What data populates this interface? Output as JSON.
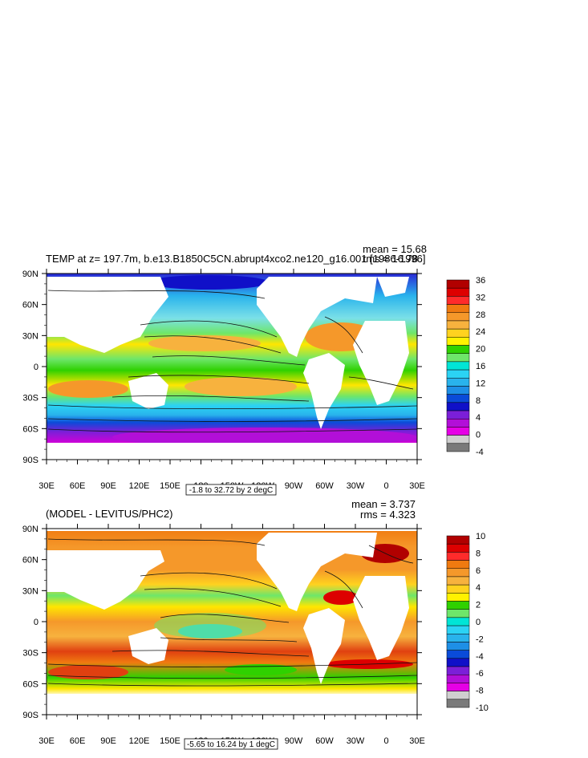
{
  "chart_data": [
    {
      "type": "heatmap",
      "title": "TEMP at z= 197.7m, b.e13.B1850C5CN.abrupt4xco2.ne120_g16.001 [1986-1996]",
      "stats": {
        "mean": "mean = 15.68",
        "rms": "rms = 16.78"
      },
      "x_ticks": [
        "30E",
        "60E",
        "90E",
        "120E",
        "150E",
        "180",
        "150W",
        "120W",
        "90W",
        "60W",
        "30W",
        "0",
        "30E"
      ],
      "y_ticks": [
        "90N",
        "60N",
        "30N",
        "0",
        "30S",
        "60S",
        "90S"
      ],
      "xlim": [
        30,
        390
      ],
      "ylim": [
        -90,
        90
      ],
      "contour_info": "-1.8 to 32.72 by 2 degC",
      "colorbar": {
        "labels": [
          "36",
          "32",
          "28",
          "24",
          "20",
          "16",
          "12",
          "8",
          "4",
          "0",
          "-4"
        ],
        "colors": [
          "#b10000",
          "#dd0000",
          "#ff2b2b",
          "#f07a10",
          "#f5982a",
          "#f7b23e",
          "#ffd21f",
          "#fff200",
          "#2fd100",
          "#6ee66a",
          "#00e5d6",
          "#2bd3f4",
          "#29b3ec",
          "#1e8fe6",
          "#0a4bd9",
          "#1010c8",
          "#7b1fd8",
          "#b20fd8",
          "#e600e6",
          "#cfcfcf",
          "#7a7a7a"
        ]
      }
    },
    {
      "type": "heatmap",
      "title": "(MODEL - LEVITUS/PHC2)",
      "stats": {
        "mean": "mean = 3.737",
        "rms": "rms = 4.323"
      },
      "x_ticks": [
        "30E",
        "60E",
        "90E",
        "120E",
        "150E",
        "180",
        "150W",
        "120W",
        "90W",
        "60W",
        "30W",
        "0",
        "30E"
      ],
      "y_ticks": [
        "90N",
        "60N",
        "30N",
        "0",
        "30S",
        "60S",
        "90S"
      ],
      "xlim": [
        30,
        390
      ],
      "ylim": [
        -90,
        90
      ],
      "contour_info": "-5.65 to 16.24 by 1 degC",
      "colorbar": {
        "labels": [
          "10",
          "8",
          "6",
          "4",
          "2",
          "0",
          "-2",
          "-4",
          "-6",
          "-8",
          "-10"
        ],
        "colors": [
          "#b10000",
          "#dd0000",
          "#ff2b2b",
          "#f07a10",
          "#f5982a",
          "#f7b23e",
          "#ffd21f",
          "#fff200",
          "#2fd100",
          "#6ee66a",
          "#00e5d6",
          "#2bd3f4",
          "#29b3ec",
          "#1e8fe6",
          "#0a4bd9",
          "#1010c8",
          "#7b1fd8",
          "#b20fd8",
          "#e600e6",
          "#cfcfcf",
          "#7a7a7a"
        ]
      }
    }
  ]
}
